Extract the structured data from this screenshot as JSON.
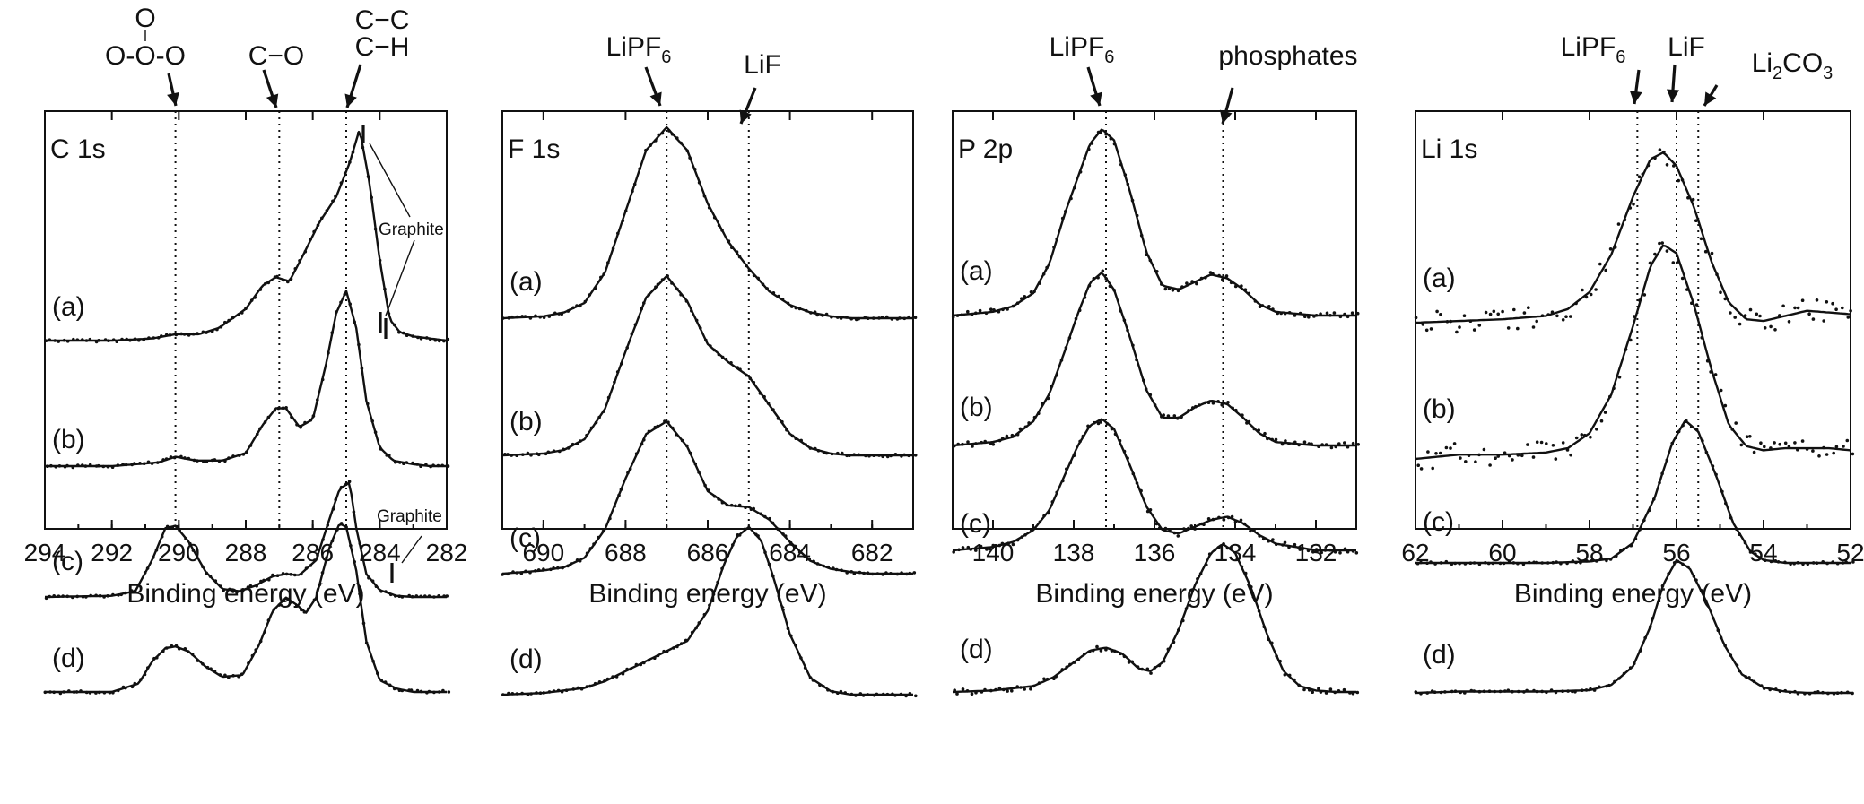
{
  "chart_data": [
    {
      "type": "line",
      "panel": "C 1s",
      "xlabel": "Binding energy (eV)",
      "xlim": [
        294,
        282
      ],
      "xticks": [
        294,
        292,
        290,
        288,
        286,
        284,
        282
      ],
      "y_axis": "intensity (arbitrary, offset)",
      "references": [
        {
          "label": "O-C-O",
          "label_top": "O",
          "x": 290.1
        },
        {
          "label": "C-O",
          "x": 287.0
        },
        {
          "label": "C-H",
          "label_top": "C-C",
          "x": 285.0
        }
      ],
      "annotations": [
        {
          "text": "Graphite",
          "marks": [
            284.5,
            284.1
          ]
        },
        {
          "text": "Graphite",
          "marks": [
            283.7
          ]
        }
      ],
      "series": [
        {
          "name": "(a)",
          "x": [
            294,
            292,
            290.8,
            290.1,
            289.4,
            288.8,
            288,
            287.5,
            287.1,
            286.7,
            286.3,
            285.8,
            285.3,
            284.9,
            284.6,
            284.3,
            284.0,
            283.7,
            283.4,
            283,
            282.5,
            282
          ],
          "y": [
            0,
            0,
            0.01,
            0.03,
            0.03,
            0.06,
            0.15,
            0.26,
            0.3,
            0.28,
            0.4,
            0.56,
            0.68,
            0.84,
            1.0,
            0.74,
            0.38,
            0.1,
            0.04,
            0.02,
            0.01,
            0
          ]
        },
        {
          "name": "(b)",
          "x": [
            294,
            292,
            290.6,
            290.1,
            289.5,
            288.7,
            288,
            287.5,
            287.1,
            286.8,
            286.4,
            286.0,
            285.6,
            285.3,
            285.0,
            284.7,
            284.4,
            284.0,
            283.6,
            283,
            282.5,
            282
          ],
          "y": [
            0,
            0,
            0.02,
            0.05,
            0.03,
            0.03,
            0.07,
            0.22,
            0.31,
            0.31,
            0.21,
            0.25,
            0.55,
            0.82,
            0.94,
            0.74,
            0.35,
            0.1,
            0.03,
            0.01,
            0,
            0
          ]
        },
        {
          "name": "(c)",
          "x": [
            294,
            292,
            291.3,
            290.8,
            290.4,
            290.1,
            289.7,
            289.2,
            288.7,
            288.2,
            287.7,
            287.2,
            286.8,
            286.4,
            285.9,
            285.5,
            285.2,
            284.9,
            284.7,
            284.4,
            284.0,
            283.5,
            283,
            282
          ],
          "y": [
            0,
            0.01,
            0.05,
            0.32,
            0.6,
            0.62,
            0.48,
            0.22,
            0.07,
            0.05,
            0.1,
            0.18,
            0.2,
            0.19,
            0.32,
            0.68,
            0.94,
            1.0,
            0.6,
            0.2,
            0.06,
            0.01,
            0,
            0
          ]
        },
        {
          "name": "(d)",
          "x": [
            294,
            292,
            291.2,
            290.8,
            290.4,
            290.1,
            289.7,
            289.2,
            288.7,
            288.1,
            287.6,
            287.2,
            286.8,
            286.5,
            286.2,
            285.9,
            285.5,
            285.2,
            285.0,
            284.7,
            284.4,
            284.0,
            283.5,
            283,
            282
          ],
          "y": [
            0,
            0,
            0.05,
            0.18,
            0.26,
            0.27,
            0.24,
            0.15,
            0.09,
            0.1,
            0.28,
            0.48,
            0.56,
            0.52,
            0.47,
            0.56,
            0.86,
            1.0,
            0.98,
            0.72,
            0.3,
            0.07,
            0.02,
            0,
            0
          ]
        }
      ]
    },
    {
      "type": "line",
      "panel": "F 1s",
      "xlabel": "Binding energy (eV)",
      "xlim": [
        691,
        681
      ],
      "xticks": [
        690,
        688,
        686,
        684,
        682
      ],
      "y_axis": "intensity (arbitrary, offset)",
      "references": [
        {
          "label": "LiPF",
          "subscript": "6",
          "x": 687.0
        },
        {
          "label": "LiF",
          "x": 685.0
        }
      ],
      "series": [
        {
          "name": "(a)",
          "x": [
            691,
            690,
            689.5,
            689,
            688.5,
            688,
            687.5,
            687.0,
            686.5,
            686,
            685.5,
            685,
            684.5,
            684,
            683.5,
            683,
            682.5,
            682,
            681
          ],
          "y": [
            0,
            0.01,
            0.03,
            0.08,
            0.24,
            0.56,
            0.88,
            1.0,
            0.88,
            0.6,
            0.4,
            0.26,
            0.14,
            0.07,
            0.03,
            0.01,
            0,
            0,
            0
          ]
        },
        {
          "name": "(b)",
          "x": [
            691,
            690,
            689.5,
            689,
            688.5,
            688,
            687.5,
            687.0,
            686.5,
            686,
            685.5,
            685,
            684.5,
            684,
            683.5,
            683,
            682.5,
            682,
            681
          ],
          "y": [
            0,
            0.01,
            0.03,
            0.09,
            0.26,
            0.58,
            0.88,
            1.0,
            0.86,
            0.62,
            0.52,
            0.44,
            0.28,
            0.12,
            0.04,
            0.01,
            0,
            0,
            0
          ]
        },
        {
          "name": "(c)",
          "x": [
            691,
            690,
            689.5,
            689,
            688.5,
            688,
            687.5,
            687.0,
            686.5,
            686,
            685.5,
            685,
            684.5,
            684,
            683.5,
            683,
            682.5,
            682,
            681
          ],
          "y": [
            0,
            0.02,
            0.04,
            0.1,
            0.28,
            0.6,
            0.88,
            0.96,
            0.8,
            0.52,
            0.43,
            0.42,
            0.34,
            0.2,
            0.08,
            0.03,
            0.01,
            0,
            0
          ]
        },
        {
          "name": "(d)",
          "x": [
            691,
            690,
            689,
            688.5,
            688,
            687.5,
            687,
            686.5,
            686,
            685.6,
            685.3,
            685.0,
            684.7,
            684.4,
            684,
            683.5,
            683,
            682.5,
            682,
            681
          ],
          "y": [
            0,
            0.01,
            0.04,
            0.08,
            0.14,
            0.2,
            0.26,
            0.32,
            0.5,
            0.78,
            0.94,
            1.0,
            0.92,
            0.7,
            0.36,
            0.1,
            0.02,
            0,
            0,
            0
          ]
        }
      ]
    },
    {
      "type": "line",
      "panel": "P 2p",
      "xlabel": "Binding energy (eV)",
      "xlim": [
        141,
        131
      ],
      "xticks": [
        140,
        138,
        136,
        134,
        132
      ],
      "y_axis": "intensity (arbitrary, offset)",
      "references": [
        {
          "label": "LiPF",
          "subscript": "6",
          "x": 137.2
        },
        {
          "label": "phosphates",
          "x": 134.3
        }
      ],
      "series": [
        {
          "name": "(a)",
          "x": [
            141,
            140,
            139.5,
            139,
            138.6,
            138.2,
            137.9,
            137.6,
            137.3,
            137.0,
            136.6,
            136.2,
            135.8,
            135.4,
            135,
            134.6,
            134.2,
            133.8,
            133.4,
            133,
            132.5,
            132,
            131
          ],
          "y": [
            0,
            0.02,
            0.05,
            0.12,
            0.28,
            0.56,
            0.74,
            0.92,
            1.0,
            0.94,
            0.66,
            0.34,
            0.16,
            0.14,
            0.18,
            0.22,
            0.2,
            0.14,
            0.06,
            0.02,
            0.01,
            0,
            0
          ]
        },
        {
          "name": "(b)",
          "x": [
            141,
            140,
            139.5,
            139,
            138.6,
            138.2,
            137.9,
            137.6,
            137.3,
            137.0,
            136.6,
            136.2,
            135.8,
            135.4,
            135,
            134.6,
            134.2,
            133.8,
            133.4,
            133,
            132.5,
            132,
            131
          ],
          "y": [
            0,
            0.02,
            0.05,
            0.14,
            0.3,
            0.56,
            0.76,
            0.94,
            1.0,
            0.9,
            0.62,
            0.32,
            0.16,
            0.16,
            0.22,
            0.26,
            0.24,
            0.16,
            0.07,
            0.02,
            0.01,
            0,
            0
          ]
        },
        {
          "name": "(c)",
          "x": [
            141,
            140,
            139.5,
            139,
            138.6,
            138.2,
            137.9,
            137.6,
            137.3,
            137.0,
            136.6,
            136.2,
            135.8,
            135.4,
            135,
            134.6,
            134.2,
            133.8,
            133.4,
            133,
            132.5,
            132,
            131
          ],
          "y": [
            0,
            0.02,
            0.05,
            0.12,
            0.24,
            0.46,
            0.62,
            0.74,
            0.78,
            0.72,
            0.5,
            0.26,
            0.12,
            0.1,
            0.14,
            0.18,
            0.2,
            0.16,
            0.09,
            0.04,
            0.02,
            0,
            0
          ]
        },
        {
          "name": "(d)",
          "x": [
            141,
            140,
            139,
            138.5,
            138,
            137.6,
            137.2,
            136.8,
            136.4,
            136.1,
            135.8,
            135.4,
            135,
            134.6,
            134.3,
            134,
            133.6,
            133.2,
            132.8,
            132.4,
            132,
            131.5,
            131
          ],
          "y": [
            0,
            0.01,
            0.04,
            0.1,
            0.2,
            0.28,
            0.3,
            0.26,
            0.16,
            0.14,
            0.2,
            0.42,
            0.72,
            0.94,
            1.0,
            0.94,
            0.7,
            0.38,
            0.14,
            0.04,
            0.01,
            0,
            0
          ]
        }
      ]
    },
    {
      "type": "line",
      "panel": "Li 1s",
      "xlabel": "Binding energy (eV)",
      "xlim": [
        62,
        52
      ],
      "xticks": [
        62,
        60,
        58,
        56,
        54,
        52
      ],
      "y_axis": "intensity (arbitrary, offset)",
      "references": [
        {
          "label": "LiPF",
          "subscript": "6",
          "x": 56.9
        },
        {
          "label": "LiF",
          "x": 56.0
        },
        {
          "label": "Li",
          "subscript": "2",
          "suffix": "CO",
          "subscript2": "3",
          "x": 55.5
        }
      ],
      "series": [
        {
          "name": "(a)",
          "x": [
            62,
            61,
            60,
            59,
            58.5,
            58,
            57.5,
            57,
            56.6,
            56.3,
            56,
            55.6,
            55.2,
            54.8,
            54.4,
            54,
            53.5,
            53,
            52.5,
            52
          ],
          "y": [
            0,
            0.01,
            0.02,
            0.04,
            0.08,
            0.18,
            0.4,
            0.74,
            0.96,
            1.0,
            0.92,
            0.68,
            0.36,
            0.12,
            0.02,
            0.01,
            0.04,
            0.07,
            0.06,
            0.05
          ]
        },
        {
          "name": "(b)",
          "x": [
            62,
            61,
            60,
            59,
            58.5,
            58,
            57.5,
            57,
            56.6,
            56.3,
            56.0,
            55.6,
            55.2,
            54.8,
            54.4,
            54,
            53.5,
            53,
            52.5,
            52
          ],
          "y": [
            0,
            0.02,
            0.02,
            0.03,
            0.05,
            0.12,
            0.3,
            0.62,
            0.9,
            1.0,
            0.96,
            0.72,
            0.42,
            0.16,
            0.06,
            0.04,
            0.05,
            0.05,
            0.05,
            0.04
          ]
        },
        {
          "name": "(c)",
          "x": [
            62,
            61,
            60,
            59,
            58,
            57.5,
            57,
            56.5,
            56.1,
            55.8,
            55.5,
            55.1,
            54.7,
            54.3,
            54,
            53.5,
            53,
            52
          ],
          "y": [
            0,
            0,
            0,
            0,
            0.01,
            0.03,
            0.14,
            0.46,
            0.84,
            1.0,
            0.92,
            0.62,
            0.28,
            0.08,
            0.02,
            0,
            0,
            0
          ]
        },
        {
          "name": "(d)",
          "x": [
            62,
            61,
            60,
            59,
            58,
            57.5,
            57,
            56.6,
            56.3,
            56.0,
            55.7,
            55.3,
            54.9,
            54.5,
            54,
            53.5,
            53,
            52
          ],
          "y": [
            0,
            0.01,
            0.01,
            0.01,
            0.02,
            0.06,
            0.2,
            0.5,
            0.82,
            1.0,
            0.94,
            0.68,
            0.36,
            0.14,
            0.04,
            0.01,
            0,
            0
          ]
        }
      ]
    }
  ],
  "labels": {
    "c1s": {
      "panel": "C 1s",
      "oco_top": "O",
      "oco": "O-C-O",
      "co": "C−O",
      "cc": "C−C",
      "ch": "C−H",
      "graphite": "Graphite"
    },
    "f1s": {
      "panel": "F 1s",
      "lipf": "LiPF",
      "lipf_sub": "6",
      "lif": "LiF"
    },
    "p2p": {
      "panel": "P 2p",
      "lipf": "LiPF",
      "lipf_sub": "6",
      "phosphates": "phosphates"
    },
    "li1s": {
      "panel": "Li 1s",
      "lipf": "LiPF",
      "lipf_sub": "6",
      "lif": "LiF",
      "li2": "Li",
      "li2_sub": "2",
      "co": "CO",
      "co_sub": "3"
    },
    "series_labels": [
      "(a)",
      "(b)",
      "(c)",
      "(d)"
    ],
    "xlabel": "Binding energy (eV)"
  }
}
